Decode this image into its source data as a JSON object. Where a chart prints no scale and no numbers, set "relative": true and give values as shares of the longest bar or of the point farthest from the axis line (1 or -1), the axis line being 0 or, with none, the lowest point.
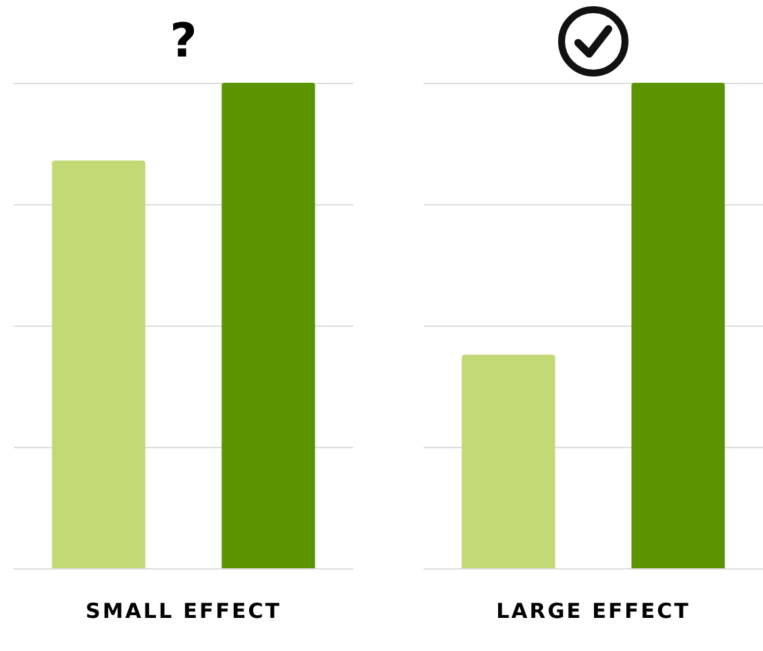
{
  "chart_data": [
    {
      "type": "bar",
      "title": "?",
      "xlabel": "SMALL EFFECT",
      "categories": [
        null,
        null
      ],
      "relative": true,
      "grid": true,
      "colors": [
        "#c2d976",
        "#5a9400"
      ],
      "values": [
        0.84,
        1
      ]
    },
    {
      "type": "bar",
      "xlabel": "LARGE EFFECT",
      "categories": [
        null,
        null
      ],
      "relative": true,
      "grid": true,
      "colors": [
        "#c2d976",
        "#5a9400"
      ],
      "values": [
        0.44,
        1
      ]
    }
  ]
}
